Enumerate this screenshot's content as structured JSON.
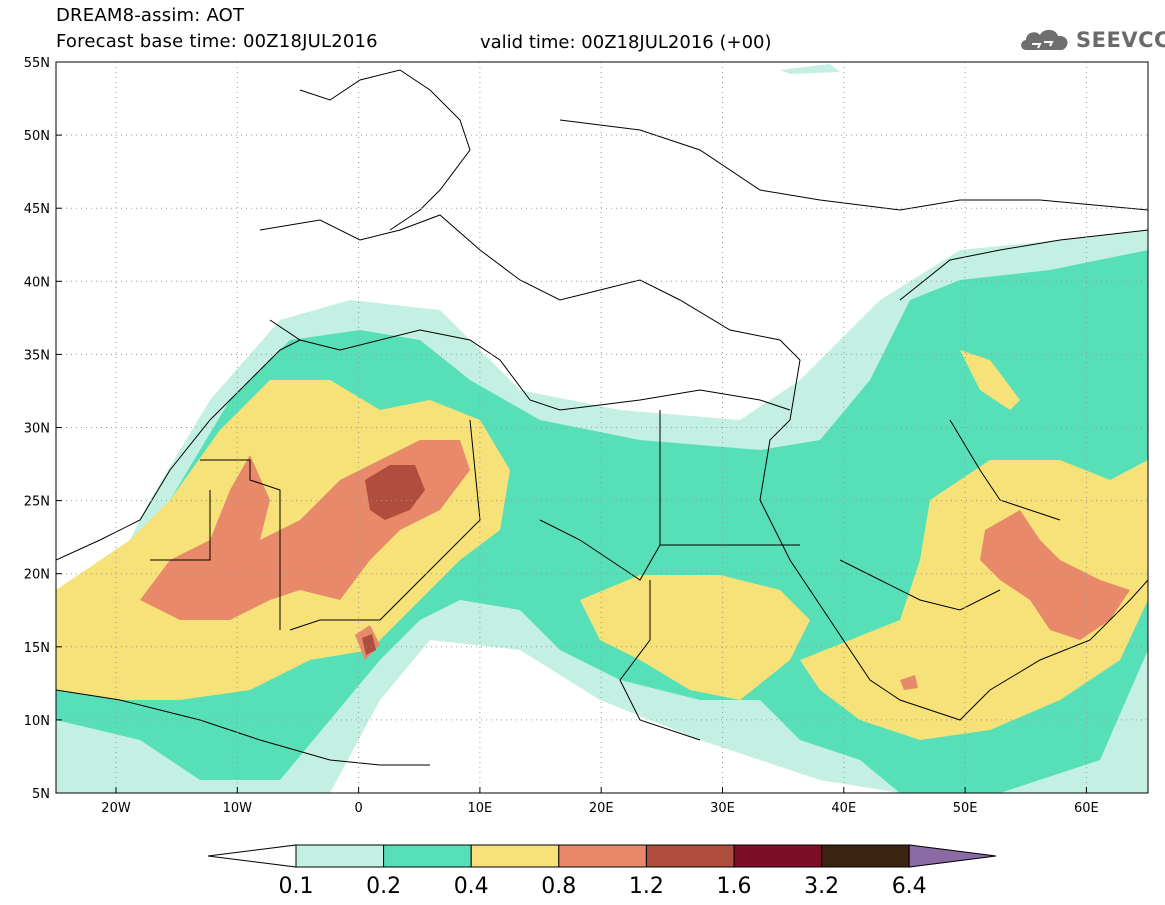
{
  "header": {
    "title": "DREAM8-assim: AOT",
    "base_time": "Forecast base time: 00Z18JUL2016",
    "valid_time": "valid time: 00Z18JUL2016 (+00)"
  },
  "logo": {
    "text": "SEEVCCC",
    "icon": "cloud-icon"
  },
  "map": {
    "lat_labels": [
      "55N",
      "50N",
      "45N",
      "40N",
      "35N",
      "30N",
      "25N",
      "20N",
      "15N",
      "10N",
      "5N"
    ],
    "lon_labels": [
      "20W",
      "10W",
      "0",
      "10E",
      "20E",
      "30E",
      "40E",
      "50E",
      "60E"
    ]
  },
  "colorbar": {
    "labels": [
      "0.1",
      "0.2",
      "0.4",
      "0.8",
      "1.2",
      "1.6",
      "3.2",
      "6.4"
    ],
    "colors": [
      "#ffffff",
      "#c4f0e4",
      "#57e0b8",
      "#f7e27a",
      "#e8896a",
      "#b04e3e",
      "#7a0f27",
      "#3c2412",
      "#8c6aa6"
    ]
  }
}
